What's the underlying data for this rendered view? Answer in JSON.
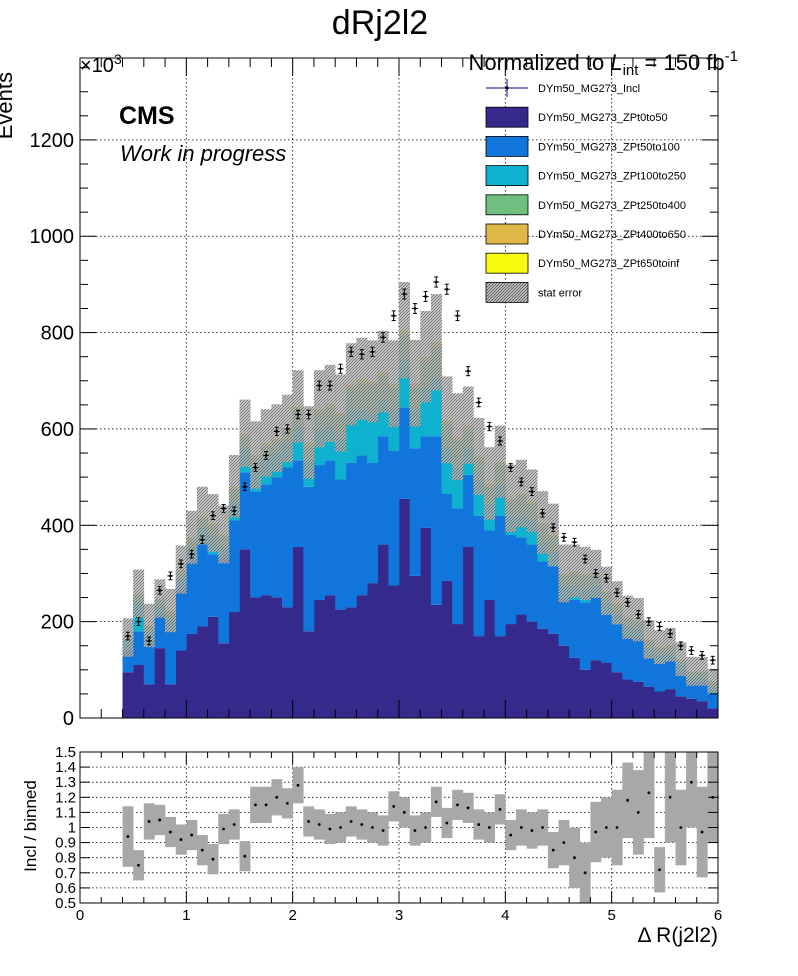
{
  "chart_data": {
    "type": "bar",
    "title": "dRj2l2",
    "lumi": {
      "prefix": "Normalized to ",
      "symbol": "L",
      "subscript": "int",
      "value": " = 150 fb",
      "superscript": "-1"
    },
    "cms_label": "CMS",
    "cms_sublabel": "Work in progress",
    "main": {
      "ylabel": "Events",
      "y_multiplier": {
        "base": "×10",
        "exp": "3"
      },
      "ylim": [
        0,
        1370
      ],
      "xlim": [
        0,
        6
      ],
      "grid": true,
      "yticks": [
        0,
        200,
        400,
        600,
        800,
        1000,
        1200
      ],
      "legend_position": "top-right"
    },
    "ratio": {
      "ylabel": "Incl / binned",
      "xlabel": "Δ R(j2l2)",
      "ylim": [
        0.5,
        1.5
      ],
      "xlim": [
        0,
        6
      ],
      "yticks": [
        0.5,
        0.6,
        0.7,
        0.8,
        0.9,
        1,
        1.1,
        1.2,
        1.3,
        1.4,
        1.5
      ],
      "xticks": [
        0,
        1,
        2,
        3,
        4,
        5,
        6
      ]
    },
    "legend": [
      {
        "name": "DYm50_MG273_Incl",
        "style": "marker",
        "color": "#000080"
      },
      {
        "name": "DYm50_MG273_ZPt0to50",
        "style": "fill",
        "color": "#352a8c"
      },
      {
        "name": "DYm50_MG273_ZPt50to100",
        "style": "fill",
        "color": "#1176dc"
      },
      {
        "name": "DYm50_MG273_ZPt100to250",
        "style": "fill",
        "color": "#0fb2ce"
      },
      {
        "name": "DYm50_MG273_ZPt250to400",
        "style": "fill",
        "color": "#6fbf7f"
      },
      {
        "name": "DYm50_MG273_ZPt400to650",
        "style": "fill",
        "color": "#e0b848"
      },
      {
        "name": "DYm50_MG273_ZPt650toinf",
        "style": "fill",
        "color": "#f8fa10"
      },
      {
        "name": "stat error",
        "style": "hatch",
        "color": "#808080"
      }
    ],
    "bin_width": 0.1,
    "x": [
      0.45,
      0.55,
      0.65,
      0.75,
      0.85,
      0.95,
      1.05,
      1.15,
      1.25,
      1.35,
      1.45,
      1.55,
      1.65,
      1.75,
      1.85,
      1.95,
      2.05,
      2.15,
      2.25,
      2.35,
      2.45,
      2.55,
      2.65,
      2.75,
      2.85,
      2.95,
      3.05,
      3.15,
      3.25,
      3.35,
      3.45,
      3.55,
      3.65,
      3.75,
      3.85,
      3.95,
      4.05,
      4.15,
      4.25,
      4.35,
      4.45,
      4.55,
      4.65,
      4.75,
      4.85,
      4.95,
      5.05,
      5.15,
      5.25,
      5.35,
      5.45,
      5.55,
      5.65,
      5.75,
      5.85,
      5.95
    ],
    "series": [
      {
        "name": "DYm50_MG273_ZPt0to50",
        "values": [
          95,
          110,
          70,
          145,
          70,
          140,
          175,
          190,
          210,
          155,
          220,
          350,
          250,
          255,
          250,
          230,
          355,
          180,
          245,
          255,
          225,
          230,
          255,
          280,
          360,
          275,
          455,
          295,
          395,
          235,
          285,
          195,
          355,
          170,
          245,
          170,
          195,
          215,
          200,
          185,
          175,
          150,
          125,
          100,
          120,
          115,
          95,
          80,
          75,
          65,
          55,
          60,
          45,
          40,
          35,
          20
        ]
      },
      {
        "name": "DYm50_MG273_ZPt50to100",
        "values": [
          45,
          70,
          80,
          70,
          110,
          130,
          150,
          170,
          130,
          180,
          190,
          160,
          220,
          230,
          250,
          290,
          180,
          300,
          280,
          280,
          270,
          300,
          290,
          250,
          225,
          280,
          190,
          265,
          190,
          350,
          180,
          240,
          150,
          250,
          145,
          250,
          185,
          160,
          160,
          140,
          140,
          100,
          120,
          140,
          130,
          100,
          100,
          90,
          90,
          60,
          60,
          60,
          50,
          35,
          40,
          30
        ]
      },
      {
        "name": "DYm50_MG273_ZPt100to250",
        "values": [
          20,
          60,
          30,
          20,
          25,
          20,
          30,
          35,
          40,
          20,
          40,
          50,
          50,
          55,
          50,
          50,
          70,
          55,
          75,
          70,
          85,
          110,
          95,
          100,
          75,
          85,
          100,
          80,
          100,
          120,
          95,
          85,
          55,
          70,
          55,
          65,
          40,
          45,
          50,
          40,
          30,
          25,
          30,
          30,
          25,
          25,
          20,
          20,
          20,
          20,
          15,
          15,
          15,
          10,
          10,
          15
        ]
      },
      {
        "name": "DYm50_MG273_ZPt250to400",
        "values": [
          5,
          15,
          10,
          10,
          15,
          15,
          15,
          20,
          20,
          20,
          25,
          25,
          20,
          25,
          25,
          25,
          35,
          30,
          35,
          40,
          45,
          45,
          55,
          60,
          50,
          45,
          50,
          45,
          55,
          65,
          50,
          55,
          40,
          45,
          35,
          40,
          30,
          40,
          35,
          35,
          30,
          20,
          25,
          25,
          20,
          20,
          20,
          15,
          15,
          15,
          15,
          15,
          10,
          10,
          10,
          10
        ]
      },
      {
        "name": "DYm50_MG273_ZPt400to650",
        "values": [
          2,
          3,
          2,
          3,
          3,
          3,
          4,
          4,
          4,
          5,
          5,
          5,
          5,
          5,
          5,
          5,
          6,
          6,
          6,
          7,
          7,
          7,
          8,
          8,
          8,
          8,
          9,
          9,
          9,
          9,
          8,
          8,
          7,
          7,
          6,
          6,
          5,
          5,
          5,
          5,
          4,
          4,
          4,
          4,
          3,
          3,
          3,
          3,
          3,
          2,
          2,
          2,
          2,
          2,
          2,
          2
        ]
      },
      {
        "name": "DYm50_MG273_ZPt650toinf",
        "values": [
          0,
          0,
          0,
          0,
          0,
          0,
          1,
          1,
          1,
          1,
          1,
          1,
          1,
          1,
          1,
          1,
          1,
          1,
          1,
          1,
          1,
          1,
          1,
          1,
          1,
          1,
          1,
          1,
          1,
          1,
          1,
          1,
          1,
          1,
          1,
          1,
          1,
          1,
          1,
          1,
          1,
          1,
          1,
          1,
          1,
          1,
          1,
          1,
          1,
          1,
          0,
          0,
          0,
          0,
          0,
          0
        ]
      },
      {
        "name": "DYm50_MG273_Incl",
        "values": [
          170,
          200,
          160,
          265,
          295,
          320,
          340,
          370,
          420,
          435,
          430,
          480,
          520,
          545,
          595,
          600,
          630,
          630,
          690,
          690,
          725,
          760,
          755,
          760,
          790,
          835,
          880,
          850,
          875,
          905,
          890,
          835,
          720,
          655,
          605,
          575,
          520,
          490,
          470,
          425,
          395,
          375,
          365,
          330,
          300,
          290,
          260,
          240,
          215,
          200,
          190,
          175,
          150,
          140,
          130,
          120
        ]
      }
    ],
    "stat_error": [
      40,
      50,
      45,
      40,
      45,
      50,
      55,
      60,
      60,
      60,
      65,
      70,
      70,
      70,
      70,
      70,
      75,
      75,
      80,
      80,
      80,
      85,
      85,
      85,
      85,
      90,
      100,
      90,
      95,
      100,
      90,
      90,
      80,
      80,
      75,
      75,
      70,
      70,
      65,
      65,
      65,
      60,
      55,
      55,
      50,
      50,
      45,
      45,
      45,
      40,
      35,
      35,
      35,
      30,
      30,
      25
    ],
    "ratio_values": [
      0.94,
      0.75,
      1.04,
      1.05,
      0.97,
      0.92,
      0.95,
      0.85,
      0.79,
      0.99,
      1.02,
      0.81,
      1.15,
      1.15,
      1.2,
      1.16,
      1.28,
      1.04,
      1.02,
      0.99,
      1.0,
      1.04,
      1.02,
      1.0,
      0.98,
      1.14,
      1.1,
      0.98,
      1.0,
      1.17,
      1.03,
      1.15,
      1.13,
      1.02,
      1.0,
      1.12,
      0.95,
      1.0,
      0.98,
      1.0,
      0.85,
      0.9,
      0.8,
      0.7,
      0.97,
      1.0,
      1.0,
      1.18,
      1.1,
      1.23,
      0.72,
      1.2,
      1.0,
      1.3,
      0.97,
      1.2
    ],
    "ratio_errors": [
      0.2,
      0.1,
      0.12,
      0.1,
      0.1,
      0.1,
      0.1,
      0.1,
      0.1,
      0.1,
      0.1,
      0.1,
      0.12,
      0.12,
      0.12,
      0.1,
      0.12,
      0.1,
      0.1,
      0.1,
      0.1,
      0.1,
      0.1,
      0.1,
      0.1,
      0.1,
      0.1,
      0.1,
      0.1,
      0.1,
      0.1,
      0.1,
      0.1,
      0.1,
      0.1,
      0.1,
      0.1,
      0.12,
      0.12,
      0.12,
      0.12,
      0.15,
      0.2,
      0.2,
      0.2,
      0.2,
      0.25,
      0.25,
      0.28,
      0.3,
      0.15,
      0.3,
      0.25,
      0.3,
      0.3,
      0.3
    ]
  }
}
